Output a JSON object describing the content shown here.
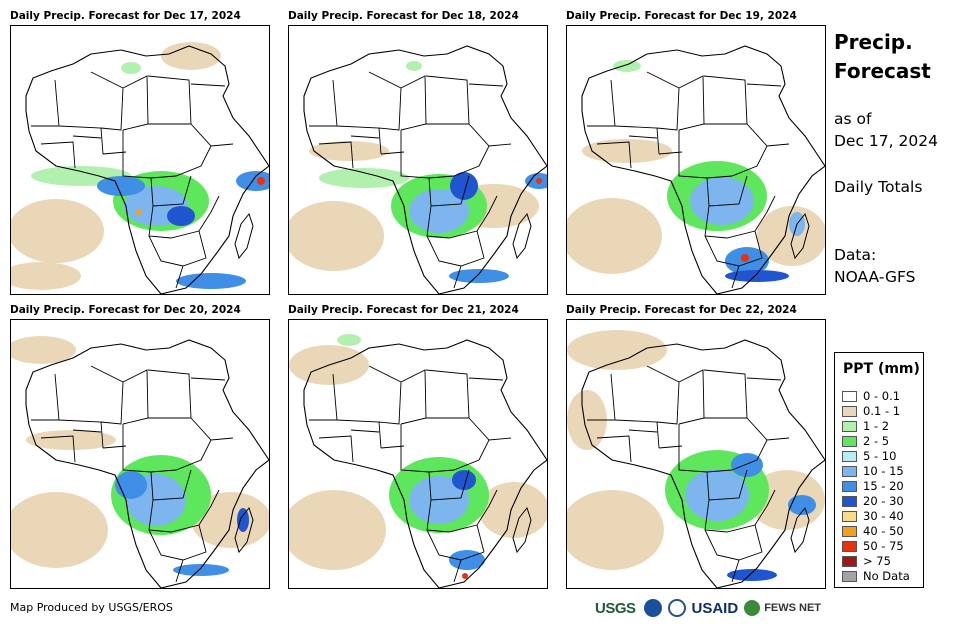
{
  "panels": [
    {
      "title": "Daily Precip. Forecast for Dec 17, 2024"
    },
    {
      "title": "Daily Precip. Forecast for Dec 18, 2024"
    },
    {
      "title": "Daily Precip. Forecast for Dec 19, 2024"
    },
    {
      "title": "Daily Precip. Forecast for Dec 20, 2024"
    },
    {
      "title": "Daily Precip. Forecast for Dec 21, 2024"
    },
    {
      "title": "Daily Precip. Forecast for Dec 22, 2024"
    }
  ],
  "sidebar": {
    "title_line1": "Precip.",
    "title_line2": "Forecast",
    "asof_line1": "as of",
    "asof_line2": "Dec 17, 2024",
    "totals": "Daily Totals",
    "data_line1": "Data:",
    "data_line2": "NOAA-GFS"
  },
  "legend": {
    "title": "PPT (mm)",
    "items": [
      {
        "label": "0 - 0.1",
        "color": "#ffffff"
      },
      {
        "label": "0.1 - 1",
        "color": "#ead7b8"
      },
      {
        "label": "1 - 2",
        "color": "#b2f0b0"
      },
      {
        "label": "2 - 5",
        "color": "#5ee65c"
      },
      {
        "label": "5 - 10",
        "color": "#b7eef5"
      },
      {
        "label": "10 - 15",
        "color": "#7db6ef"
      },
      {
        "label": "15 - 20",
        "color": "#3f8fe6"
      },
      {
        "label": "20 - 30",
        "color": "#1f56cf"
      },
      {
        "label": "30 - 40",
        "color": "#f8dc88"
      },
      {
        "label": "40 - 50",
        "color": "#f3a01e"
      },
      {
        "label": "50 - 75",
        "color": "#e8320f"
      },
      {
        "label": "> 75",
        "color": "#a01818"
      },
      {
        "label": "No Data",
        "color": "#a3a3a3"
      }
    ]
  },
  "footer": {
    "producer": "Map Produced by USGS/EROS",
    "logo_usgs": "USGS",
    "logo_usaid": "USAID",
    "logo_fews": "FEWS NET"
  }
}
